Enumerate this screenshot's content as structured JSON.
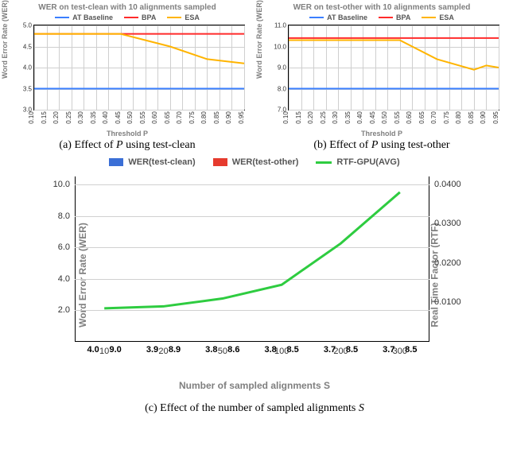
{
  "colors": {
    "at_baseline": "#3a7fff",
    "bpa": "#ff2b2b",
    "esa": "#ffb400",
    "grid": "#cfcfcf",
    "title_gray": "#7f7f7f",
    "bar_blue": "#3b6fd6",
    "bar_red": "#e63b2e",
    "rtf_green": "#2ecc40",
    "border": "#000000"
  },
  "chart_a": {
    "title": "WER on test-clean with 10 alignments sampled",
    "ylabel": "Word Error Rate (WER)",
    "xlabel": "Threshold P",
    "legend": {
      "at": "AT Baseline",
      "bpa": "BPA",
      "esa": "ESA"
    },
    "x_ticks": [
      0.1,
      0.15,
      0.2,
      0.25,
      0.3,
      0.35,
      0.4,
      0.45,
      0.5,
      0.55,
      0.6,
      0.65,
      0.7,
      0.75,
      0.8,
      0.85,
      0.9,
      0.95
    ],
    "y_ticks": [
      3.0,
      3.5,
      4.0,
      4.5,
      5.0
    ],
    "ylim": [
      3.0,
      5.0
    ],
    "series": {
      "at": 3.5,
      "bpa": 4.8,
      "esa": [
        [
          0.1,
          4.8
        ],
        [
          0.45,
          4.8
        ],
        [
          0.65,
          4.5
        ],
        [
          0.8,
          4.2
        ],
        [
          0.95,
          4.1
        ]
      ]
    },
    "caption": "(a) Effect of P using test-clean",
    "caption_var": "P"
  },
  "chart_b": {
    "title": "WER on test-other with 10 alignments sampled",
    "ylabel": "Word Error Rate (WER)",
    "xlabel": "Threshold P",
    "legend": {
      "at": "AT Baseline",
      "bpa": "BPA",
      "esa": "ESA"
    },
    "x_ticks": [
      0.1,
      0.15,
      0.2,
      0.25,
      0.3,
      0.35,
      0.4,
      0.45,
      0.5,
      0.55,
      0.6,
      0.65,
      0.7,
      0.75,
      0.8,
      0.85,
      0.9,
      0.95
    ],
    "y_ticks": [
      7.0,
      8.0,
      9.0,
      10.0,
      11.0
    ],
    "ylim": [
      7.0,
      11.0
    ],
    "series": {
      "at": 8.0,
      "bpa": 10.4,
      "esa": [
        [
          0.1,
          10.3
        ],
        [
          0.5,
          10.3
        ],
        [
          0.55,
          10.3
        ],
        [
          0.7,
          9.4
        ],
        [
          0.85,
          8.9
        ],
        [
          0.9,
          9.1
        ],
        [
          0.95,
          9.0
        ]
      ]
    },
    "caption": "(b) Effect of P using test-other",
    "caption_var": "P"
  },
  "chart_c": {
    "legend": {
      "clean": "WER(test-clean)",
      "other": "WER(test-other)",
      "rtf": "RTF-GPU(AVG)"
    },
    "xlabel": "Number of sampled alignments S",
    "ylabel_left": "Word Error Rate (WER)",
    "ylabel_right": "Real Time Factor (RTF)",
    "x_categories": [
      10,
      20,
      50,
      100,
      200,
      300
    ],
    "y_left_ticks": [
      2.0,
      4.0,
      6.0,
      8.0,
      10.0
    ],
    "y_left_lim": [
      0,
      10.5
    ],
    "y_right_ticks": [
      0.01,
      0.02,
      0.03,
      0.04
    ],
    "y_right_lim": [
      0,
      0.042
    ],
    "bars_clean": [
      4.0,
      3.9,
      3.8,
      3.8,
      3.7,
      3.7
    ],
    "bars_other": [
      9.0,
      8.9,
      8.6,
      8.5,
      8.5,
      8.5
    ],
    "rtf": [
      0.0085,
      0.009,
      0.011,
      0.0145,
      0.025,
      0.038
    ],
    "caption": "(c) Effect of the number of sampled alignments S",
    "caption_var": "S"
  }
}
